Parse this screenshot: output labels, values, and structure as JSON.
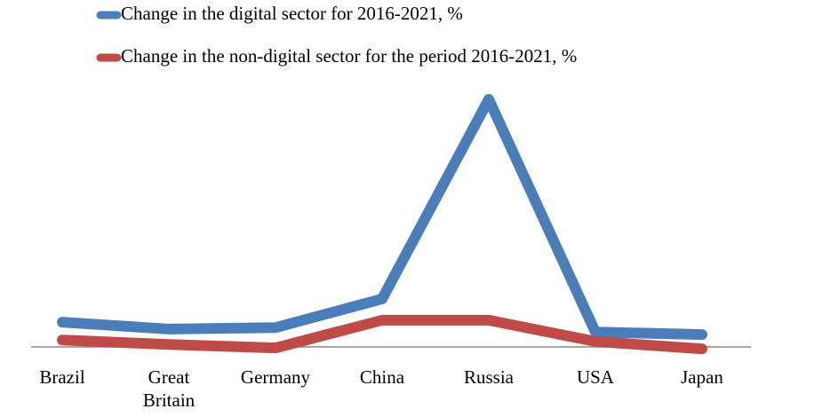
{
  "chart_data": {
    "type": "line",
    "categories": [
      "Brazil",
      "Great Britain",
      "Germany",
      "China",
      "Russia",
      "USA",
      "Japan"
    ],
    "series": [
      {
        "name": "Change in the digital sector for 2016-2021, %",
        "color": "#4a7ebb",
        "values": [
          5.0,
          3.6,
          3.9,
          9.7,
          50,
          3.0,
          2.5
        ]
      },
      {
        "name": "Change in the non-digital sector for the period 2016-2021, %",
        "color": "#be4b48",
        "values": [
          1.4,
          0.5,
          -0.2,
          5.4,
          5.4,
          1.1,
          -0.4
        ]
      }
    ],
    "ylim": [
      -1,
      52
    ],
    "grid": false,
    "legend": "top"
  }
}
